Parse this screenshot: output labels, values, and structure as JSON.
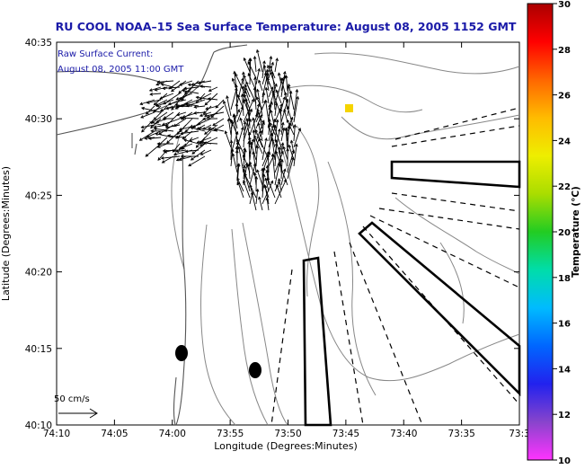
{
  "title": "RU COOL  NOAA–15  Sea Surface Temperature:  August 08, 2005 1152 GMT",
  "annotation": {
    "line1": "Raw Surface Current:",
    "line2": "August 08, 2005 11:00 GMT"
  },
  "scale": {
    "label": "50 cm/s"
  },
  "axes": {
    "x_label": "Longitude (Degrees:Minutes)",
    "y_label": "Latitude (Degrees:Minutes)",
    "x_ticks": [
      "74:10",
      "74:05",
      "74:00",
      "73:55",
      "73:50",
      "73:45",
      "73:40",
      "73:35",
      "73:3"
    ],
    "y_ticks": [
      "40:35",
      "40:30",
      "40:25",
      "40:20",
      "40:15",
      "40:10"
    ]
  },
  "colorbar": {
    "label": "Temperature (°C)",
    "ticks": [
      "30",
      "28",
      "26",
      "24",
      "22",
      "20",
      "18",
      "16",
      "14",
      "12",
      "10"
    ],
    "colors": [
      "#ff33ff",
      "#8844cc",
      "#2222ee",
      "#0066ff",
      "#00bbff",
      "#00ddaa",
      "#22cc22",
      "#aadd00",
      "#eeee00",
      "#ffbb00",
      "#ff6600",
      "#ff0000",
      "#aa0000"
    ]
  },
  "colors": {
    "title": "#1a1aa8",
    "annotation": "#1a1aa8",
    "sst_pixel": "#f5d400"
  }
}
